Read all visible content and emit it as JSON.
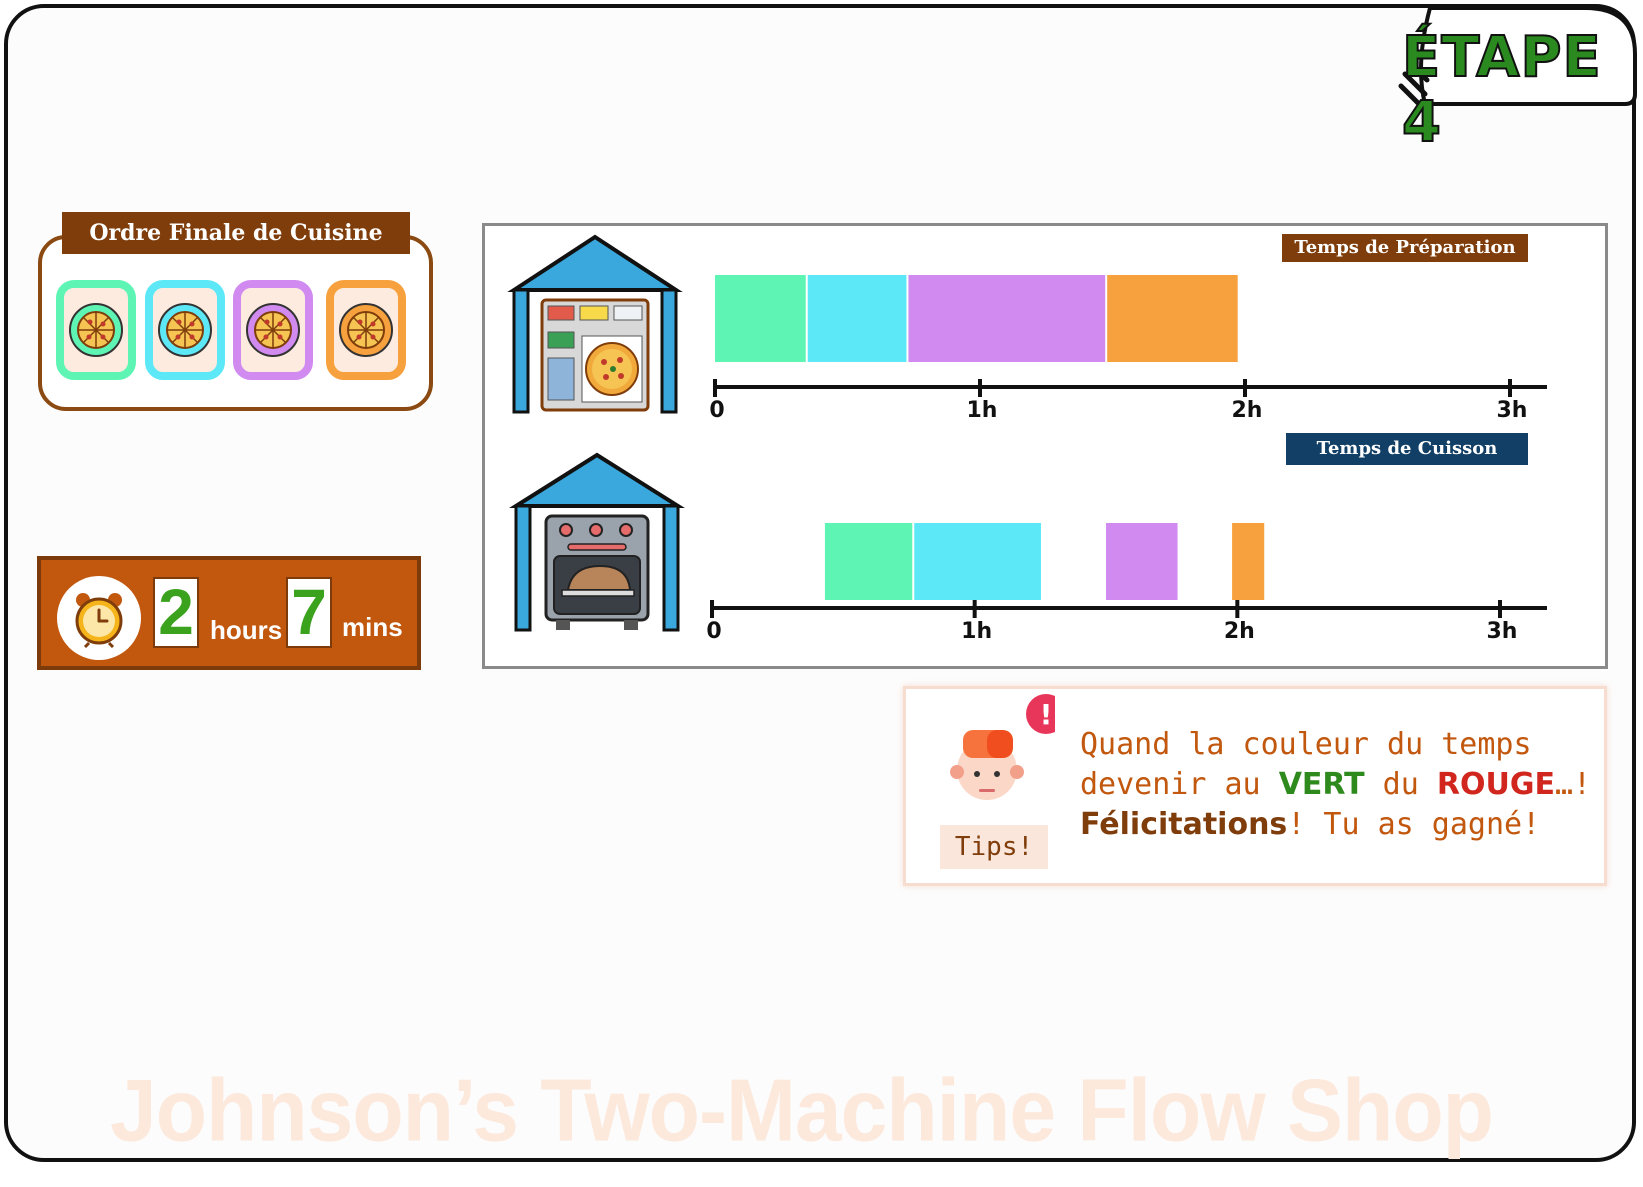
{
  "stage": {
    "label": "ÉTAPE 4"
  },
  "order": {
    "title": "Ordre Finale de Cuisine",
    "pizzas": [
      {
        "name": "pizza-green",
        "color": "#5ef5b4"
      },
      {
        "name": "pizza-cyan",
        "color": "#5ce8f7"
      },
      {
        "name": "pizza-purple",
        "color": "#d08af0"
      },
      {
        "name": "pizza-orange",
        "color": "#f7a13e"
      }
    ]
  },
  "timer": {
    "hours": "2",
    "hours_label": "hours",
    "mins": "7",
    "mins_label": "mins"
  },
  "chart_data": [
    {
      "type": "bar",
      "title": "Temps de Préparation",
      "machine": "fridge-icon",
      "xlim": [
        0,
        3
      ],
      "ticks": [
        "0",
        "1h",
        "2h",
        "3h"
      ],
      "bars": [
        {
          "job": "green",
          "start": 0.0,
          "end": 0.35,
          "color": "#5ef5b4"
        },
        {
          "job": "cyan",
          "start": 0.35,
          "end": 0.73,
          "color": "#5ce8f7"
        },
        {
          "job": "purple",
          "start": 0.73,
          "end": 1.48,
          "color": "#d08af0"
        },
        {
          "job": "orange",
          "start": 1.48,
          "end": 1.98,
          "color": "#f7a13e"
        }
      ]
    },
    {
      "type": "bar",
      "title": "Temps de Cuisson",
      "machine": "oven-icon",
      "xlim": [
        0,
        3
      ],
      "ticks": [
        "0",
        "1h",
        "2h",
        "3h"
      ],
      "bars": [
        {
          "job": "green",
          "start": 0.43,
          "end": 0.77,
          "color": "#5ef5b4"
        },
        {
          "job": "cyan",
          "start": 0.77,
          "end": 1.26,
          "color": "#5ce8f7"
        },
        {
          "job": "purple",
          "start": 1.5,
          "end": 1.78,
          "color": "#d08af0"
        },
        {
          "job": "orange",
          "start": 1.98,
          "end": 2.11,
          "color": "#f7a13e"
        }
      ]
    }
  ],
  "tips": {
    "label": "Tips!",
    "line1": "Quand la couleur du temps",
    "line2_a": "devenir au ",
    "line2_green": "VERT",
    "line2_b": " du ",
    "line2_red": "ROUGE",
    "line2_c": "…!",
    "line3_bold": "Félicitations",
    "line3_rest": "! Tu as gagné!"
  },
  "watermark": "Johnson’s Two-Machine Flow Shop",
  "colors": {
    "brown": "#7f3d0b",
    "orange_brown": "#c2570e",
    "navy": "#123f66",
    "green_text": "#2f8a1e",
    "red_text": "#d0261d",
    "roof_blue": "#3aa8dc"
  }
}
